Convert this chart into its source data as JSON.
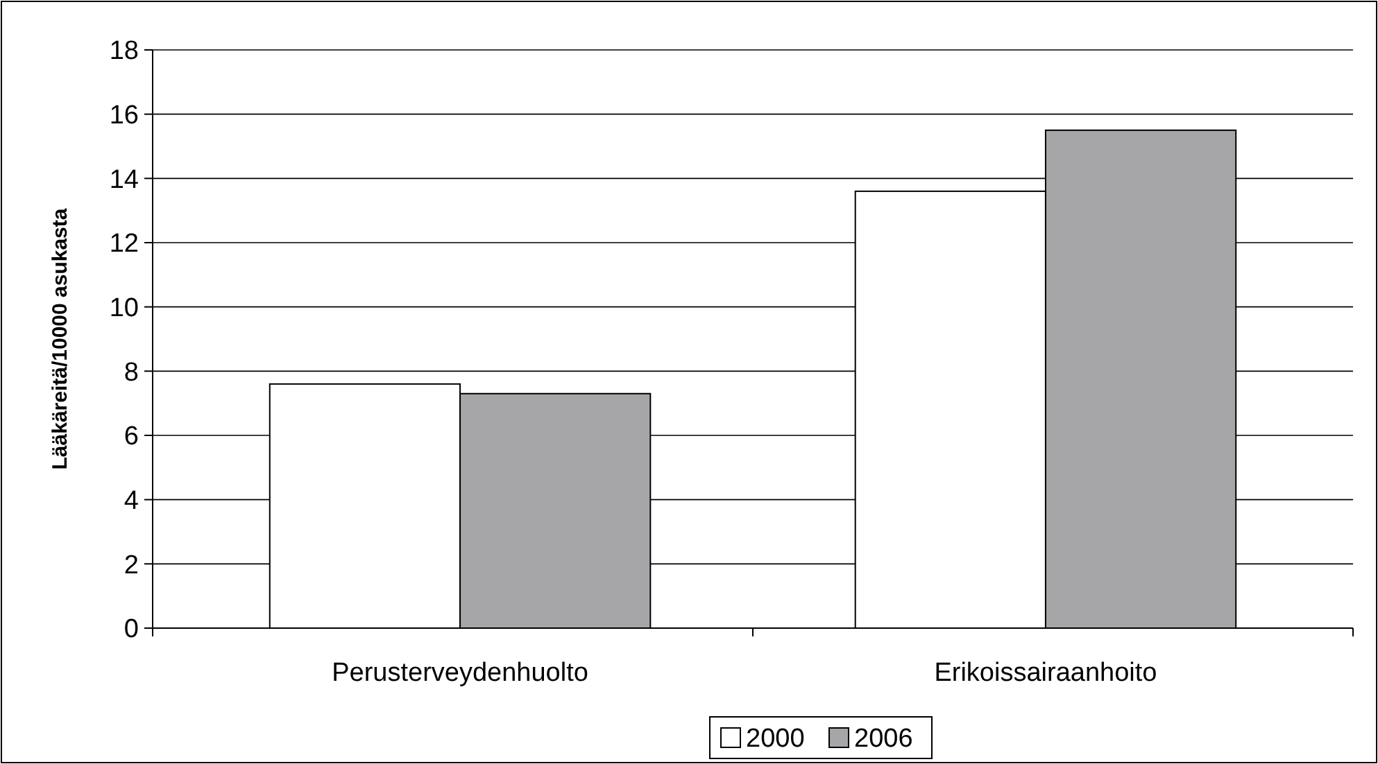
{
  "chart_data": {
    "type": "bar",
    "ylabel": "Lääkäreitä/10000 asukasta",
    "categories": [
      "Perusterveydenhuolto",
      "Erikoissairaanhoito"
    ],
    "series": [
      {
        "name": "2000",
        "color": "#ffffff",
        "values": [
          7.6,
          13.6
        ]
      },
      {
        "name": "2006",
        "color": "#a6a6a8",
        "values": [
          7.3,
          15.5
        ]
      }
    ],
    "ylim": [
      0,
      18
    ],
    "yticks": [
      0,
      2,
      4,
      6,
      8,
      10,
      12,
      14,
      16,
      18
    ],
    "grid": "y",
    "legend": "bottom"
  }
}
